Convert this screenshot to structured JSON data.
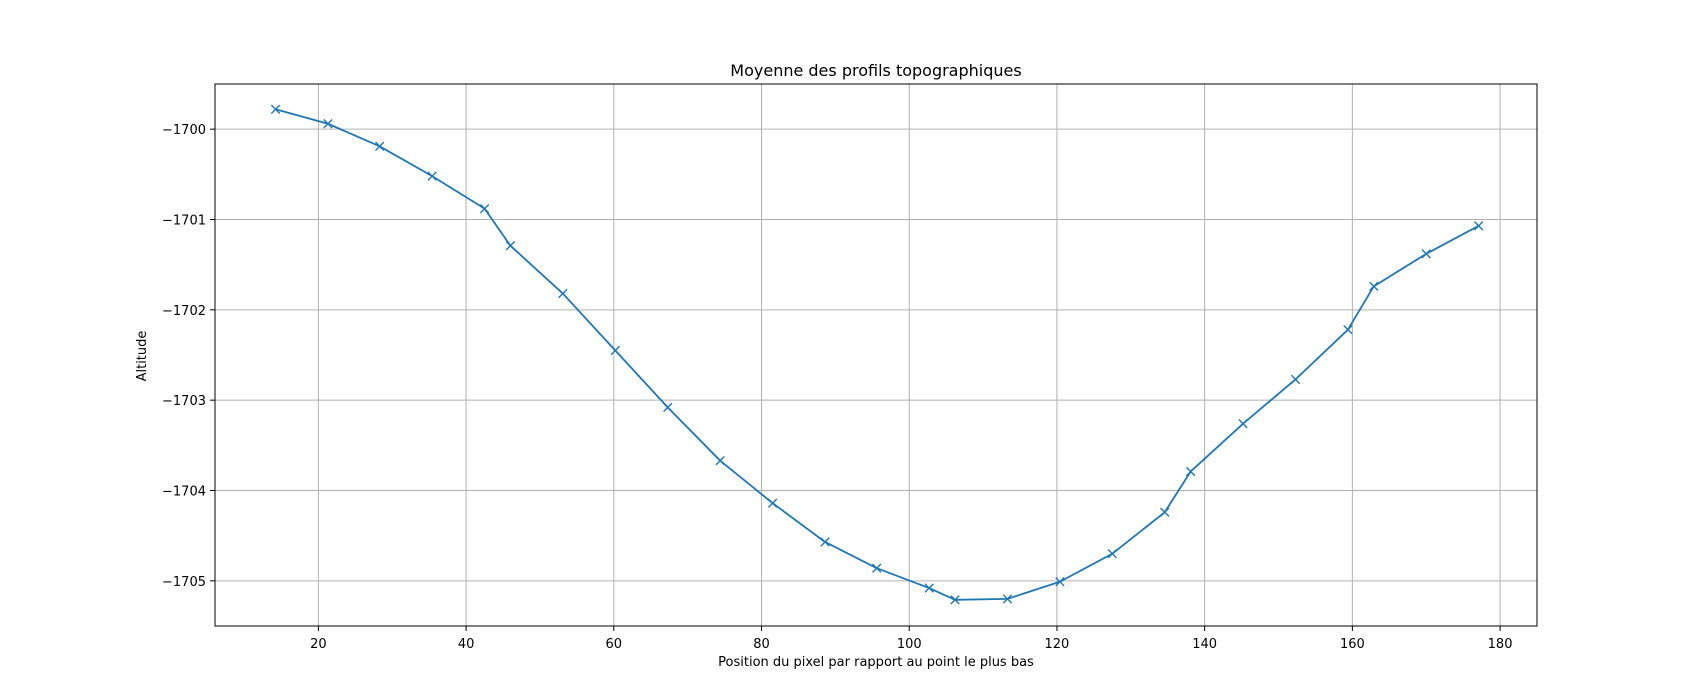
{
  "chart_data": {
    "type": "line",
    "title": "Moyenne des profils topographiques",
    "xlabel": "Position du pixel par rapport au point le plus bas",
    "ylabel": "Altitude",
    "xlim": [
      6,
      185
    ],
    "ylim": [
      -1705.5,
      -1699.5
    ],
    "xticks": [
      20,
      40,
      60,
      80,
      100,
      120,
      140,
      160,
      180
    ],
    "xtick_labels": [
      "20",
      "40",
      "60",
      "80",
      "100",
      "120",
      "140",
      "160",
      "180"
    ],
    "yticks": [
      -1700,
      -1701,
      -1702,
      -1703,
      -1704,
      -1705
    ],
    "ytick_labels": [
      "−1700",
      "−1701",
      "−1702",
      "−1703",
      "−1704",
      "−1705"
    ],
    "grid": true,
    "marker": "x",
    "series": [
      {
        "color": "#1f77b4",
        "x": [
          14.2,
          21.3,
          28.3,
          35.4,
          42.5,
          46.0,
          53.1,
          60.2,
          67.3,
          74.4,
          81.5,
          88.6,
          95.6,
          102.7,
          106.2,
          113.3,
          120.4,
          127.5,
          134.6,
          138.1,
          145.2,
          152.3,
          159.4,
          162.9,
          170.0,
          177.1
        ],
        "y": [
          -1699.78,
          -1699.94,
          -1700.19,
          -1700.52,
          -1700.88,
          -1701.29,
          -1701.82,
          -1702.45,
          -1703.08,
          -1703.67,
          -1704.14,
          -1704.57,
          -1704.86,
          -1705.08,
          -1705.21,
          -1705.2,
          -1705.01,
          -1704.7,
          -1704.24,
          -1703.79,
          -1703.26,
          -1702.77,
          -1702.22,
          -1701.74,
          -1701.38,
          -1701.07
        ]
      }
    ]
  }
}
